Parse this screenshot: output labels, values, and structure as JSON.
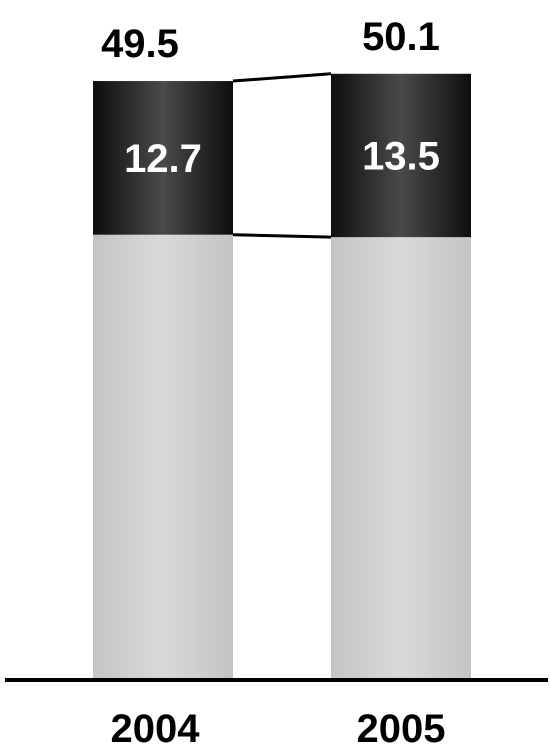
{
  "chart_data": {
    "type": "bar",
    "stacked": true,
    "categories": [
      "2004",
      "2005"
    ],
    "series": [
      {
        "values": [
          36.8,
          36.6
        ],
        "color": "#cccccc"
      },
      {
        "values": [
          12.7,
          13.5
        ],
        "color": "#333333"
      }
    ],
    "segment_labels": [
      "12.7",
      "13.5"
    ],
    "totals": [
      49.5,
      50.1
    ],
    "total_labels": [
      "49.5",
      "50.1"
    ],
    "connector_lines": true,
    "grid": false,
    "legend": "none",
    "title": "",
    "xlabel": "",
    "ylabel": ""
  }
}
